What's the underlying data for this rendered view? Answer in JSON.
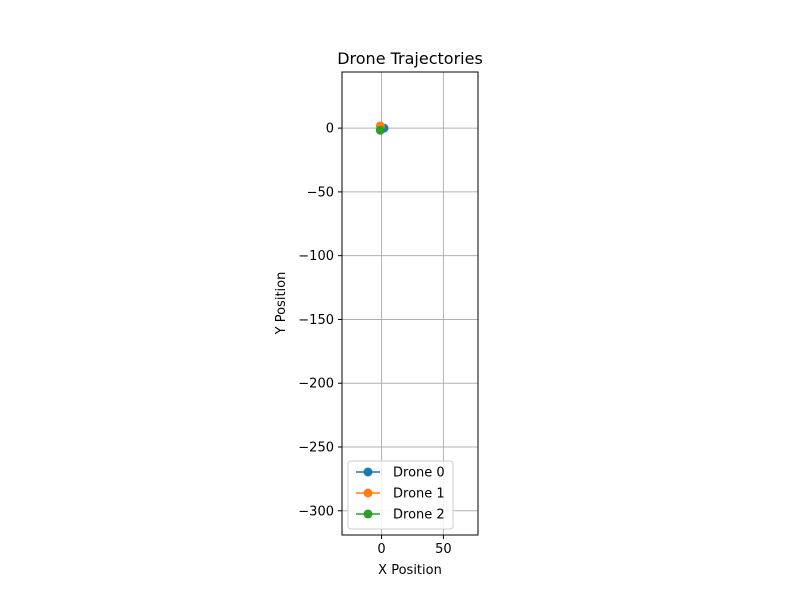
{
  "chart_data": {
    "type": "line",
    "title": "Drone Trajectories",
    "xlabel": "X Position",
    "ylabel": "Y Position",
    "xlim": [
      -32,
      78
    ],
    "ylim": [
      -319,
      44
    ],
    "xticks": [
      0,
      50
    ],
    "xtick_labels": [
      "0",
      "50"
    ],
    "yticks": [
      0,
      -50,
      -100,
      -150,
      -200,
      -250,
      -300
    ],
    "ytick_labels": [
      "0",
      "−50",
      "−100",
      "−150",
      "−200",
      "−250",
      "−300"
    ],
    "grid": true,
    "legend_position": "lower-center",
    "series": [
      {
        "name": "Drone 0",
        "color": "#1f77b4",
        "x": [
          2.0
        ],
        "y": [
          0.0
        ],
        "marker": "circle"
      },
      {
        "name": "Drone 1",
        "color": "#ff7f0e",
        "x": [
          -1.0
        ],
        "y": [
          1.7
        ],
        "marker": "circle"
      },
      {
        "name": "Drone 2",
        "color": "#2ca02c",
        "x": [
          -1.0
        ],
        "y": [
          -1.7
        ],
        "marker": "circle"
      }
    ]
  }
}
